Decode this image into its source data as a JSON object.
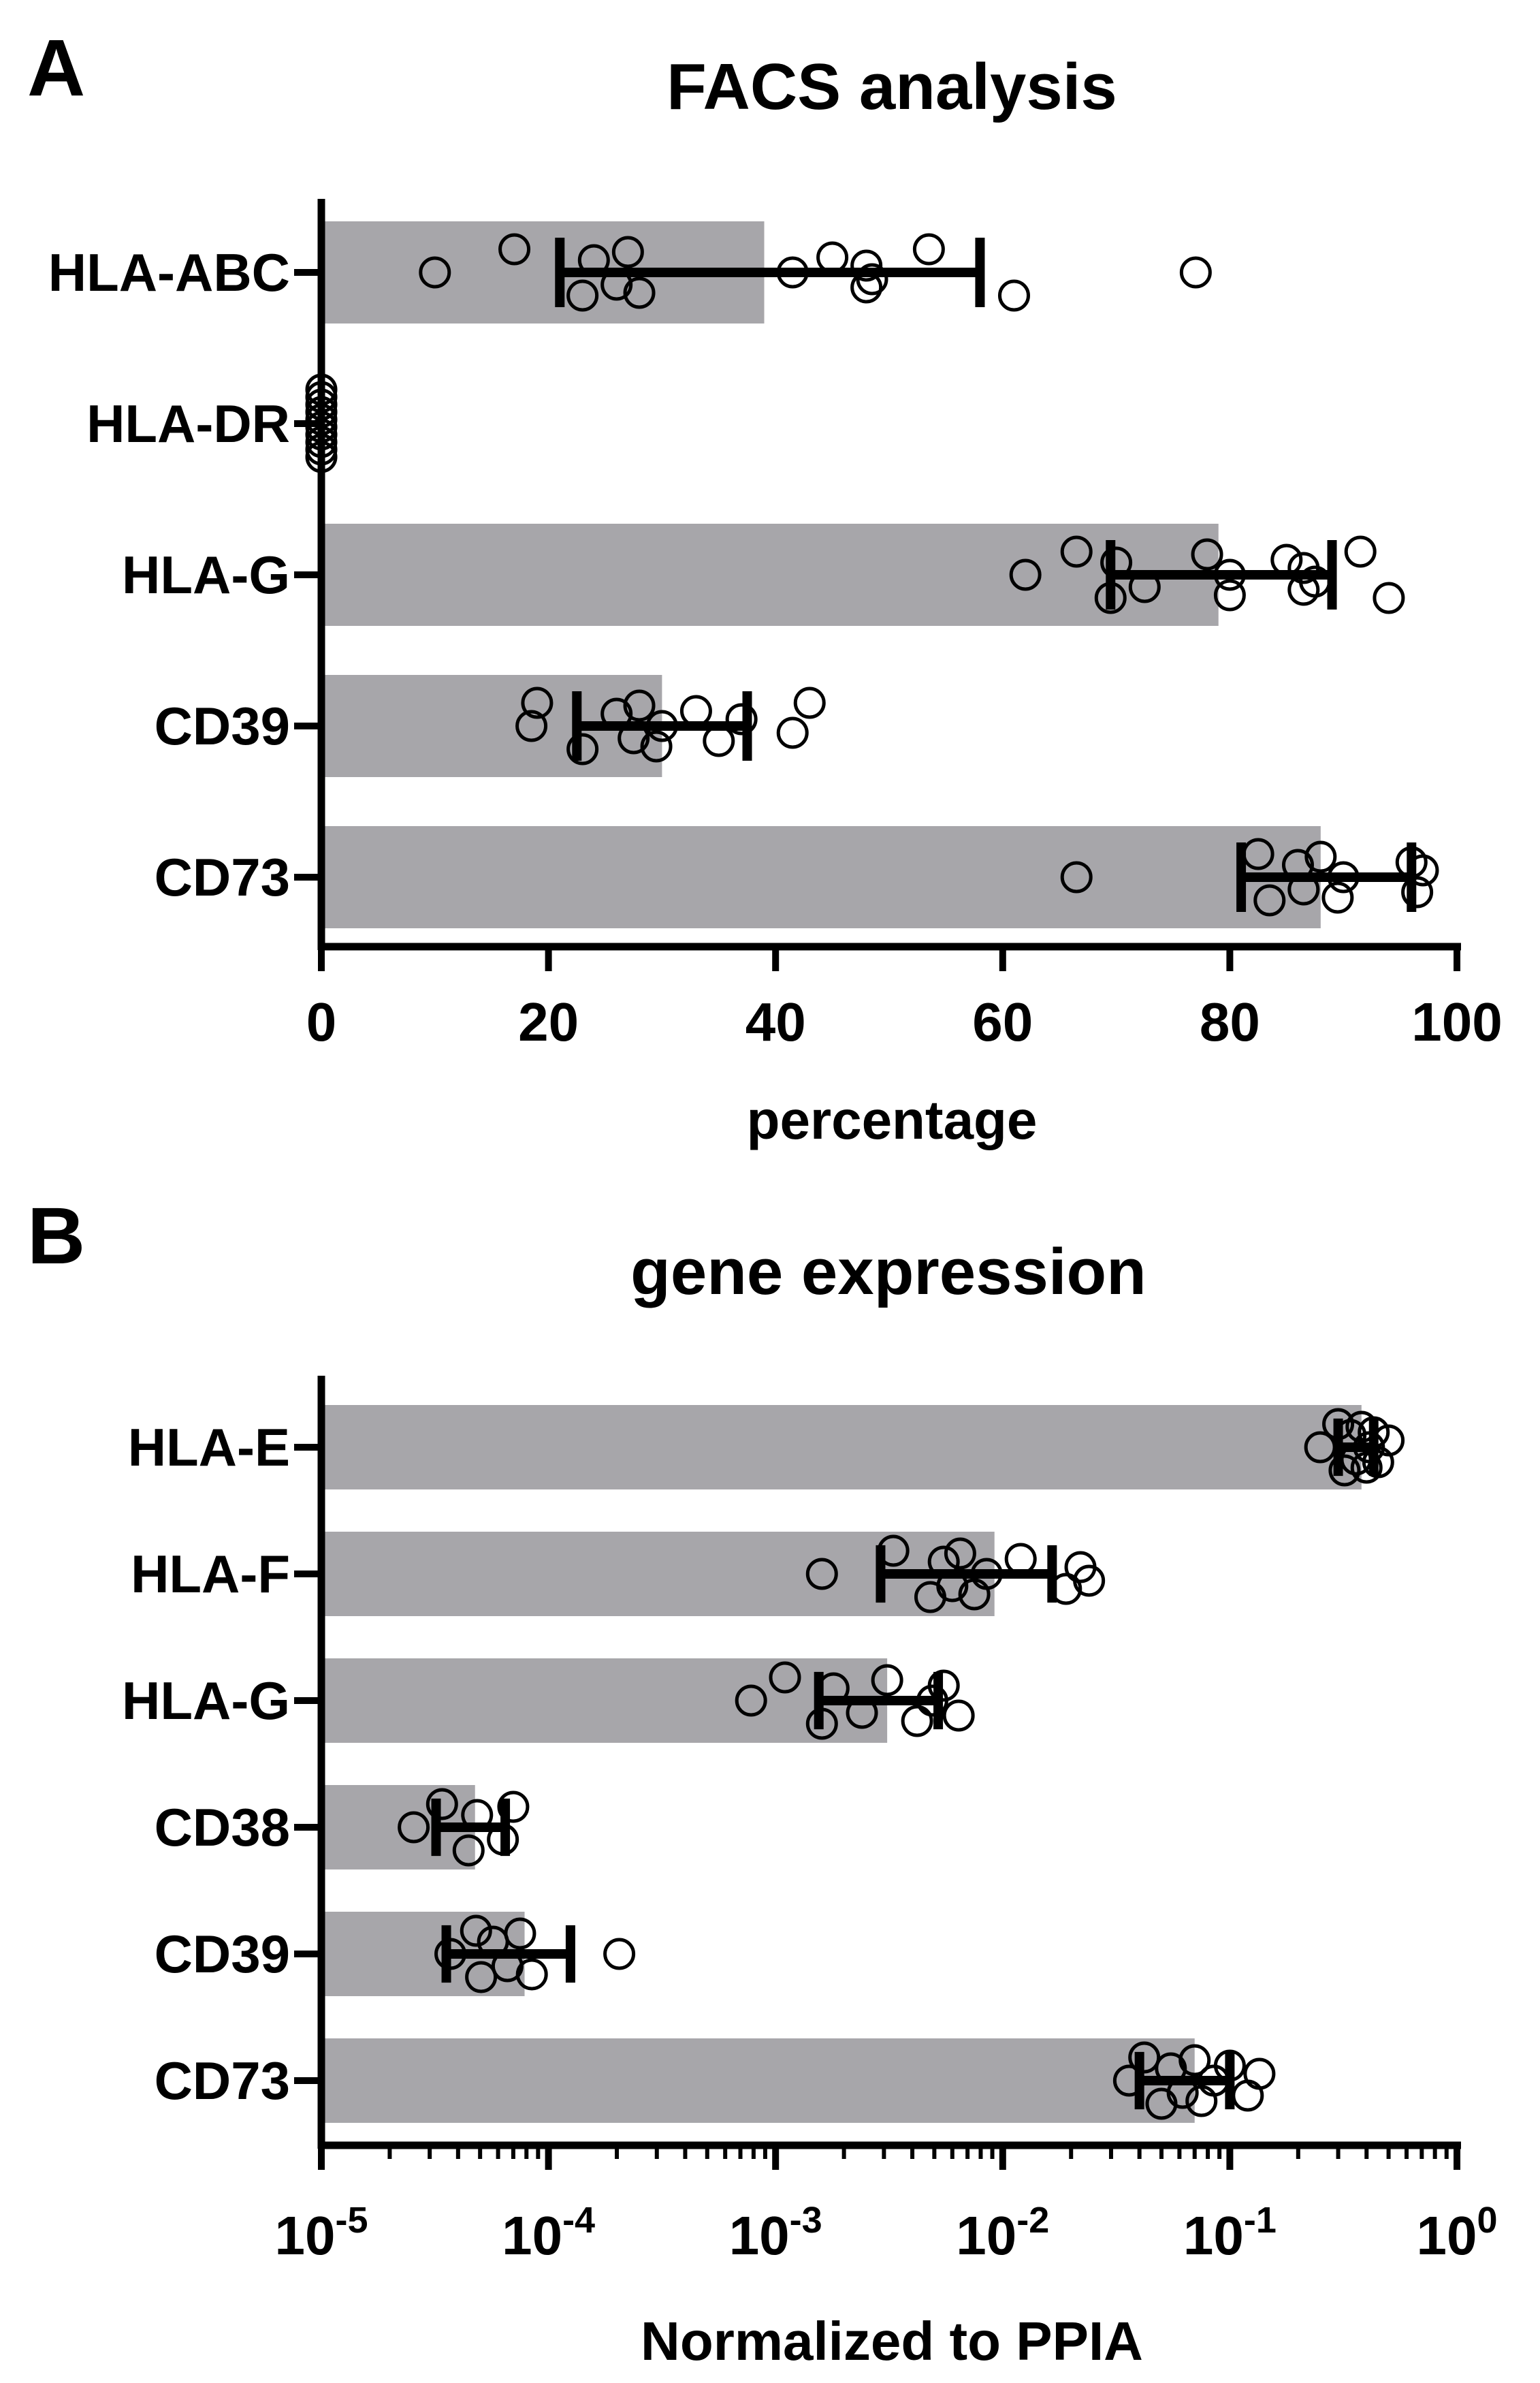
{
  "colors": {
    "bar": "#a7a6aa",
    "axis": "#000000",
    "point_fill": "#ffffff",
    "point_stroke": "#000000"
  },
  "chart_data": [
    {
      "panel": "A",
      "type": "bar",
      "orientation": "horizontal",
      "title": "FACS analysis",
      "xlabel": "percentage",
      "ylabel": "",
      "xlim": [
        0,
        100
      ],
      "x_scale": "linear",
      "x_ticks": [
        0,
        20,
        40,
        60,
        80,
        100
      ],
      "x_tick_labels": [
        "0",
        "20",
        "40",
        "60",
        "80",
        "100"
      ],
      "categories": [
        "HLA-ABC",
        "HLA-DR",
        "HLA-G",
        "CD39",
        "CD73"
      ],
      "values": [
        39,
        0,
        79,
        30,
        88
      ],
      "error_low": [
        21,
        0,
        69.5,
        22.5,
        81
      ],
      "error_high": [
        58,
        0,
        89,
        37.5,
        96
      ],
      "points": [
        [
          10,
          17,
          23,
          24,
          26,
          27,
          28,
          41.5,
          45,
          48,
          48,
          48.5,
          53.5,
          61,
          77
        ],
        [
          0,
          0,
          0,
          0,
          0,
          0,
          0,
          0,
          0,
          0
        ],
        [
          62,
          66.5,
          69.5,
          70,
          72.5,
          78,
          80,
          80,
          85,
          86.5,
          86.5,
          87.5,
          91.5,
          94
        ],
        [
          18.5,
          19,
          23,
          26,
          27.5,
          28,
          29.5,
          30,
          33,
          35,
          37,
          41.5,
          43
        ],
        [
          66.5,
          82.5,
          83.5,
          86,
          86.5,
          88,
          89.5,
          90,
          96,
          96.5,
          97
        ]
      ]
    },
    {
      "panel": "B",
      "type": "bar",
      "orientation": "horizontal",
      "title": "gene expression",
      "xlabel": "Normalized to PPIA",
      "ylabel": "",
      "xlim": [
        1e-05,
        1
      ],
      "x_scale": "log",
      "x_ticks": [
        1e-05,
        0.0001,
        0.001,
        0.01,
        0.1,
        1
      ],
      "x_tick_labels": [
        {
          "base": "10",
          "exp": "-5"
        },
        {
          "base": "10",
          "exp": "-4"
        },
        {
          "base": "10",
          "exp": "-3"
        },
        {
          "base": "10",
          "exp": "-2"
        },
        {
          "base": "10",
          "exp": "-1"
        },
        {
          "base": "10",
          "exp": "0"
        }
      ],
      "categories": [
        "HLA-E",
        "HLA-F",
        "HLA-G",
        "CD38",
        "CD39",
        "CD73"
      ],
      "values": [
        0.38,
        0.0092,
        0.0031,
        4.75e-05,
        7.85e-05,
        0.07
      ],
      "error_low": [
        0.3,
        0.0029,
        0.00155,
        3.2e-05,
        3.55e-05,
        0.04
      ],
      "error_high": [
        0.43,
        0.0165,
        0.0052,
        6.45e-05,
        0.000125,
        0.1
      ],
      "points": [
        [
          0.25,
          0.3,
          0.32,
          0.34,
          0.36,
          0.38,
          0.4,
          0.41,
          0.43,
          0.45,
          0.5
        ],
        [
          0.0016,
          0.0033,
          0.0048,
          0.0055,
          0.006,
          0.0065,
          0.0075,
          0.0085,
          0.012,
          0.019,
          0.022,
          0.024
        ],
        [
          0.00078,
          0.0011,
          0.0016,
          0.0018,
          0.0024,
          0.0031,
          0.0042,
          0.0049,
          0.0055,
          0.0064
        ],
        [
          2.55e-05,
          3.4e-05,
          4.45e-05,
          4.85e-05,
          6.3e-05,
          7e-05
        ],
        [
          3.7e-05,
          4.8e-05,
          5.05e-05,
          5.7e-05,
          6.6e-05,
          7.5e-05,
          8.45e-05,
          0.000205
        ],
        [
          0.036,
          0.042,
          0.05,
          0.055,
          0.062,
          0.07,
          0.075,
          0.085,
          0.1,
          0.12,
          0.135
        ]
      ]
    }
  ]
}
